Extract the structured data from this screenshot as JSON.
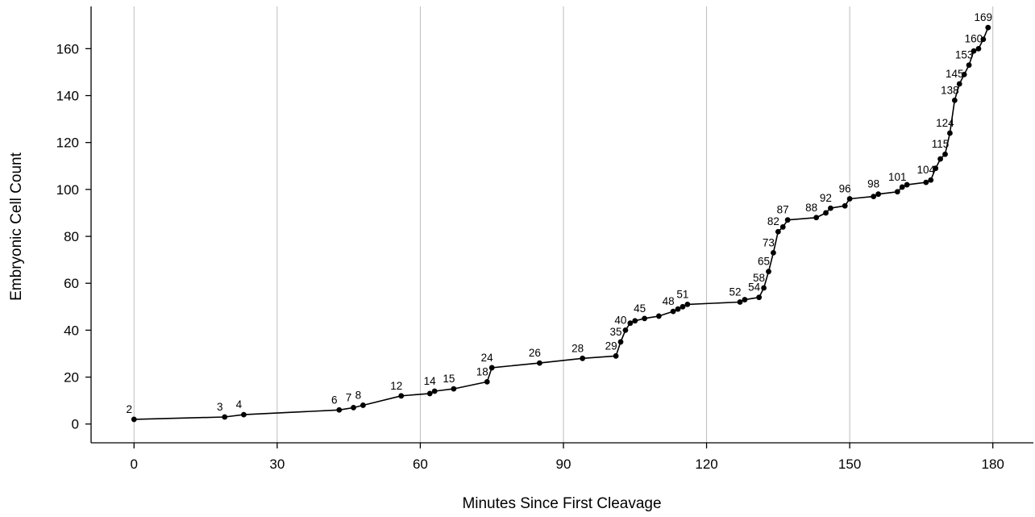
{
  "chart_data": {
    "type": "line",
    "title": "",
    "xlabel": "Minutes Since First Cleavage",
    "ylabel": "Embryonic Cell Count",
    "xlim": [
      -9,
      188.5
    ],
    "ylim": [
      -8,
      178
    ],
    "x_ticks": [
      0,
      30,
      60,
      90,
      120,
      150,
      180
    ],
    "y_ticks": [
      0,
      20,
      40,
      60,
      80,
      100,
      120,
      140,
      160
    ],
    "grid": "vertical lines at x ticks",
    "series_color": "#000000",
    "points": [
      {
        "x": 0,
        "y": 2,
        "label": "2"
      },
      {
        "x": 19,
        "y": 3,
        "label": "3"
      },
      {
        "x": 23,
        "y": 4,
        "label": "4"
      },
      {
        "x": 43,
        "y": 6,
        "label": "6"
      },
      {
        "x": 46,
        "y": 7,
        "label": "7"
      },
      {
        "x": 48,
        "y": 8,
        "label": "8"
      },
      {
        "x": 56,
        "y": 12,
        "label": "12"
      },
      {
        "x": 62,
        "y": 13
      },
      {
        "x": 63,
        "y": 14,
        "label": "14"
      },
      {
        "x": 67,
        "y": 15,
        "label": "15"
      },
      {
        "x": 74,
        "y": 18,
        "label": "18"
      },
      {
        "x": 75,
        "y": 24,
        "label": "24"
      },
      {
        "x": 85,
        "y": 26,
        "label": "26"
      },
      {
        "x": 94,
        "y": 28,
        "label": "28"
      },
      {
        "x": 101,
        "y": 29,
        "label": "29"
      },
      {
        "x": 102,
        "y": 35,
        "label": "35"
      },
      {
        "x": 103,
        "y": 40,
        "label": "40"
      },
      {
        "x": 104,
        "y": 43
      },
      {
        "x": 105,
        "y": 44
      },
      {
        "x": 107,
        "y": 45,
        "label": "45"
      },
      {
        "x": 110,
        "y": 46
      },
      {
        "x": 113,
        "y": 48,
        "label": "48"
      },
      {
        "x": 114,
        "y": 49
      },
      {
        "x": 115,
        "y": 50
      },
      {
        "x": 116,
        "y": 51,
        "label": "51"
      },
      {
        "x": 127,
        "y": 52,
        "label": "52"
      },
      {
        "x": 128,
        "y": 53
      },
      {
        "x": 131,
        "y": 54,
        "label": "54"
      },
      {
        "x": 132,
        "y": 58,
        "label": "58"
      },
      {
        "x": 133,
        "y": 65,
        "label": "65"
      },
      {
        "x": 134,
        "y": 73,
        "label": "73"
      },
      {
        "x": 135,
        "y": 82,
        "label": "82"
      },
      {
        "x": 136,
        "y": 84
      },
      {
        "x": 137,
        "y": 87,
        "label": "87"
      },
      {
        "x": 143,
        "y": 88,
        "label": "88"
      },
      {
        "x": 145,
        "y": 90
      },
      {
        "x": 146,
        "y": 92,
        "label": "92"
      },
      {
        "x": 149,
        "y": 93
      },
      {
        "x": 150,
        "y": 96,
        "label": "96"
      },
      {
        "x": 155,
        "y": 97
      },
      {
        "x": 156,
        "y": 98,
        "label": "98"
      },
      {
        "x": 160,
        "y": 99
      },
      {
        "x": 161,
        "y": 101,
        "label": "101"
      },
      {
        "x": 162,
        "y": 102
      },
      {
        "x": 166,
        "y": 103
      },
      {
        "x": 167,
        "y": 104,
        "label": "104"
      },
      {
        "x": 168,
        "y": 109
      },
      {
        "x": 169,
        "y": 113
      },
      {
        "x": 170,
        "y": 115,
        "label": "115"
      },
      {
        "x": 171,
        "y": 124,
        "label": "124"
      },
      {
        "x": 172,
        "y": 138,
        "label": "138"
      },
      {
        "x": 173,
        "y": 145,
        "label": "145"
      },
      {
        "x": 174,
        "y": 149
      },
      {
        "x": 175,
        "y": 153,
        "label": "153"
      },
      {
        "x": 176,
        "y": 159
      },
      {
        "x": 177,
        "y": 160,
        "label": "160"
      },
      {
        "x": 178,
        "y": 164
      },
      {
        "x": 179,
        "y": 169,
        "label": "169"
      }
    ]
  }
}
